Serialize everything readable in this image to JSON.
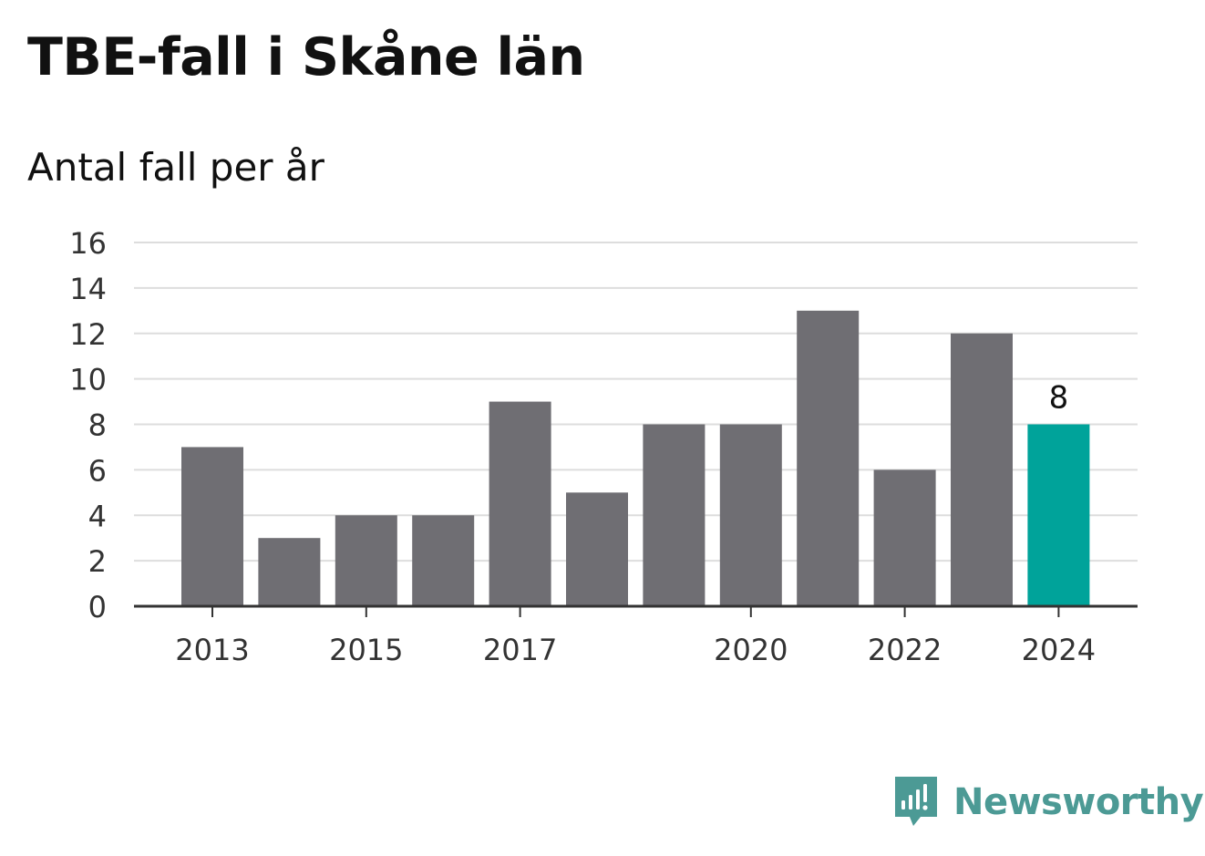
{
  "title": "TBE-fall i Skåne län",
  "subtitle": "Antal fall per år",
  "brand": {
    "name": "Newsworthy",
    "icon": "newsworthy-logo-icon",
    "color": "#4c9a95"
  },
  "colors": {
    "bar": "#6f6e73",
    "highlight": "#00a39a",
    "grid": "#dddddd",
    "axis": "#333333",
    "text": "#111111"
  },
  "chart_data": {
    "type": "bar",
    "categories": [
      "2013",
      "2014",
      "2015",
      "2016",
      "2017",
      "2018",
      "2019",
      "2020",
      "2021",
      "2022",
      "2023",
      "2024"
    ],
    "values": [
      7,
      3,
      4,
      4,
      9,
      5,
      8,
      8,
      13,
      6,
      12,
      8
    ],
    "x_tick_labels": [
      "2013",
      "2015",
      "2017",
      "2020",
      "2022",
      "2024"
    ],
    "y_ticks": [
      0,
      2,
      4,
      6,
      8,
      10,
      12,
      14,
      16
    ],
    "ylim": [
      0,
      16
    ],
    "highlight": {
      "category": "2024",
      "label": "8"
    },
    "grid": true,
    "legend": "none",
    "xlabel": "",
    "ylabel": ""
  }
}
